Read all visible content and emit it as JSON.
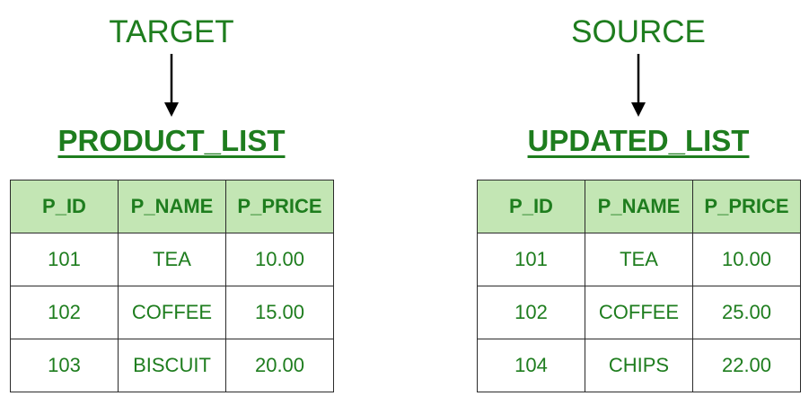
{
  "left": {
    "role": "TARGET",
    "title": "PRODUCT_LIST",
    "columns": [
      "P_ID",
      "P_NAME",
      "P_PRICE"
    ],
    "rows": [
      [
        "101",
        "TEA",
        "10.00"
      ],
      [
        "102",
        "COFFEE",
        "15.00"
      ],
      [
        "103",
        "BISCUIT",
        "20.00"
      ]
    ]
  },
  "right": {
    "role": "SOURCE",
    "title": "UPDATED_LIST",
    "columns": [
      "P_ID",
      "P_NAME",
      "P_PRICE"
    ],
    "rows": [
      [
        "101",
        "TEA",
        "10.00"
      ],
      [
        "102",
        "COFFEE",
        "25.00"
      ],
      [
        "104",
        "CHIPS",
        "22.00"
      ]
    ]
  },
  "colors": {
    "text": "#1e7d1e",
    "header_fill": "#c3e6b4",
    "border": "#2b2b2b",
    "arrow": "#000000"
  }
}
